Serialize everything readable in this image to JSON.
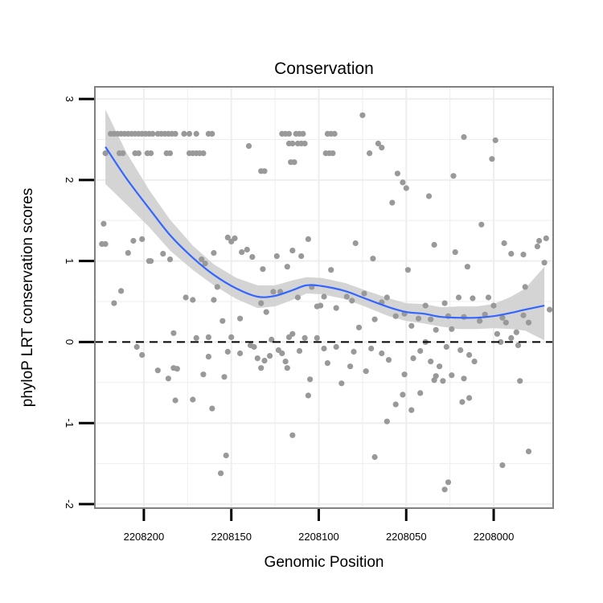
{
  "chart_data": {
    "type": "scatter",
    "title": "Conservation",
    "xlabel": "Genomic Position",
    "ylabel": "phyloP LRT conservation scores",
    "x_reversed": true,
    "xlim": [
      2208228,
      2207966
    ],
    "ylim": [
      -2.05,
      3.15
    ],
    "x_ticks": [
      2208200,
      2208150,
      2208100,
      2208050,
      2208000
    ],
    "x_tick_labels": [
      "2208200",
      "2208150",
      "2208100",
      "2208050",
      "2208000"
    ],
    "y_ticks": [
      -2,
      -1,
      0,
      1,
      2,
      3
    ],
    "y_tick_labels": [
      "-2",
      "-1",
      "0",
      "1",
      "2",
      "3"
    ],
    "grid": true,
    "reference_line": {
      "y": 0,
      "style": "dashed",
      "color": "#000000"
    },
    "colors": {
      "points": "#999999",
      "smooth": "#3366ff",
      "ribbon": "#cccccc",
      "panel_border": "#808080",
      "grid": "#eeeeee"
    },
    "points": [
      [
        2208219,
        2.57
      ],
      [
        2208217,
        2.57
      ],
      [
        2208215,
        2.57
      ],
      [
        2208213,
        2.57
      ],
      [
        2208211,
        2.57
      ],
      [
        2208209,
        2.57
      ],
      [
        2208207,
        2.57
      ],
      [
        2208205,
        2.57
      ],
      [
        2208203,
        2.57
      ],
      [
        2208201,
        2.57
      ],
      [
        2208199,
        2.57
      ],
      [
        2208197,
        2.57
      ],
      [
        2208195,
        2.57
      ],
      [
        2208192,
        2.57
      ],
      [
        2208190,
        2.57
      ],
      [
        2208188,
        2.57
      ],
      [
        2208186,
        2.57
      ],
      [
        2208184,
        2.57
      ],
      [
        2208182,
        2.57
      ],
      [
        2208177,
        2.57
      ],
      [
        2208174,
        2.57
      ],
      [
        2208170,
        2.57
      ],
      [
        2208163,
        2.57
      ],
      [
        2208161,
        2.57
      ],
      [
        2208222,
        2.33
      ],
      [
        2208214,
        2.33
      ],
      [
        2208212,
        2.33
      ],
      [
        2208205,
        2.33
      ],
      [
        2208203,
        2.33
      ],
      [
        2208198,
        2.33
      ],
      [
        2208196,
        2.33
      ],
      [
        2208187,
        2.33
      ],
      [
        2208185,
        2.33
      ],
      [
        2208174,
        2.33
      ],
      [
        2208172,
        2.33
      ],
      [
        2208170,
        2.33
      ],
      [
        2208168,
        2.33
      ],
      [
        2208166,
        2.33
      ],
      [
        2208121,
        2.57
      ],
      [
        2208119,
        2.57
      ],
      [
        2208117,
        2.57
      ],
      [
        2208113,
        2.57
      ],
      [
        2208111,
        2.57
      ],
      [
        2208109,
        2.57
      ],
      [
        2208095,
        2.57
      ],
      [
        2208093,
        2.57
      ],
      [
        2208091,
        2.57
      ],
      [
        2208117,
        2.45
      ],
      [
        2208115,
        2.45
      ],
      [
        2208112,
        2.45
      ],
      [
        2208110,
        2.45
      ],
      [
        2208108,
        2.45
      ],
      [
        2208096,
        2.33
      ],
      [
        2208094,
        2.33
      ],
      [
        2208092,
        2.33
      ],
      [
        2208071,
        2.33
      ],
      [
        2208133,
        2.11
      ],
      [
        2208131,
        2.11
      ],
      [
        2208116,
        2.22
      ],
      [
        2208114,
        2.22
      ],
      [
        2208140,
        2.42
      ],
      [
        2208075,
        2.8
      ],
      [
        2208066,
        2.45
      ],
      [
        2208064,
        2.4
      ],
      [
        2208055,
        2.08
      ],
      [
        2208052,
        1.97
      ],
      [
        2208058,
        1.72
      ],
      [
        2208050,
        1.9
      ],
      [
        2208037,
        1.8
      ],
      [
        2208023,
        2.05
      ],
      [
        2208017,
        2.53
      ],
      [
        2207999,
        2.49
      ],
      [
        2208001,
        2.26
      ],
      [
        2207975,
        1.18
      ],
      [
        2207983,
        1.08
      ],
      [
        2207974,
        1.25
      ],
      [
        2207970,
        1.28
      ],
      [
        2208223,
        1.46
      ],
      [
        2208224,
        1.21
      ],
      [
        2208222,
        1.21
      ],
      [
        2208209,
        1.1
      ],
      [
        2208206,
        1.25
      ],
      [
        2208201,
        1.27
      ],
      [
        2208197,
        1.0
      ],
      [
        2208196,
        1.0
      ],
      [
        2208189,
        1.09
      ],
      [
        2208185,
        1.02
      ],
      [
        2208167,
        1.02
      ],
      [
        2208165,
        0.97
      ],
      [
        2208160,
        1.1
      ],
      [
        2208152,
        1.29
      ],
      [
        2208150,
        1.24
      ],
      [
        2208148,
        1.28
      ],
      [
        2208144,
        1.11
      ],
      [
        2208141,
        1.14
      ],
      [
        2208138,
        1.05
      ],
      [
        2208132,
        0.9
      ],
      [
        2208124,
        1.06
      ],
      [
        2208118,
        0.93
      ],
      [
        2208115,
        1.13
      ],
      [
        2208110,
        1.06
      ],
      [
        2208106,
        1.27
      ],
      [
        2208093,
        0.89
      ],
      [
        2208079,
        1.22
      ],
      [
        2208074,
        0.6
      ],
      [
        2208069,
        1.03
      ],
      [
        2208049,
        0.89
      ],
      [
        2208034,
        1.2
      ],
      [
        2208022,
        1.11
      ],
      [
        2208015,
        0.93
      ],
      [
        2208007,
        1.45
      ],
      [
        2208003,
        0.55
      ],
      [
        2207994,
        1.22
      ],
      [
        2207990,
        1.09
      ],
      [
        2207982,
        0.68
      ],
      [
        2207971,
        0.98
      ],
      [
        2207968,
        0.4
      ],
      [
        2208176,
        0.55
      ],
      [
        2208172,
        0.52
      ],
      [
        2208163,
        0.06
      ],
      [
        2208160,
        0.52
      ],
      [
        2208158,
        0.68
      ],
      [
        2208155,
        0.26
      ],
      [
        2208145,
        0.29
      ],
      [
        2208133,
        0.48
      ],
      [
        2208130,
        0.37
      ],
      [
        2208126,
        0.62
      ],
      [
        2208122,
        0.62
      ],
      [
        2208117,
        0.06
      ],
      [
        2208112,
        0.55
      ],
      [
        2208104,
        0.68
      ],
      [
        2208101,
        0.44
      ],
      [
        2208099,
        0.45
      ],
      [
        2208097,
        0.56
      ],
      [
        2208090,
        0.42
      ],
      [
        2208084,
        0.56
      ],
      [
        2208081,
        0.51
      ],
      [
        2208077,
        0.18
      ],
      [
        2208068,
        0.28
      ],
      [
        2208064,
        0.49
      ],
      [
        2208061,
        0.55
      ],
      [
        2208056,
        0.32
      ],
      [
        2208051,
        0.35
      ],
      [
        2208047,
        0.2
      ],
      [
        2208043,
        0.29
      ],
      [
        2208039,
        0.45
      ],
      [
        2208036,
        0.28
      ],
      [
        2208033,
        0.15
      ],
      [
        2208028,
        0.48
      ],
      [
        2208026,
        0.32
      ],
      [
        2208024,
        0.16
      ],
      [
        2208020,
        0.55
      ],
      [
        2208017,
        0.31
      ],
      [
        2208012,
        0.54
      ],
      [
        2208008,
        0.26
      ],
      [
        2208005,
        0.34
      ],
      [
        2208000,
        0.45
      ],
      [
        2207995,
        0.3
      ],
      [
        2207993,
        0.24
      ],
      [
        2207987,
        0.12
      ],
      [
        2207983,
        0.33
      ],
      [
        2207980,
        0.24
      ],
      [
        2208217,
        0.48
      ],
      [
        2208213,
        0.63
      ],
      [
        2208204,
        -0.06
      ],
      [
        2208201,
        -0.16
      ],
      [
        2208183,
        0.11
      ],
      [
        2208170,
        0.05
      ],
      [
        2208150,
        0.06
      ],
      [
        2208145,
        -0.14
      ],
      [
        2208137,
        -0.06
      ],
      [
        2208135,
        -0.2
      ],
      [
        2208133,
        -0.32
      ],
      [
        2208127,
        0.03
      ],
      [
        2208123,
        -0.1
      ],
      [
        2208121,
        -0.14
      ],
      [
        2208119,
        -0.24
      ],
      [
        2208115,
        0.1
      ],
      [
        2208111,
        -0.11
      ],
      [
        2208108,
        0.05
      ],
      [
        2208101,
        0.05
      ],
      [
        2208097,
        -0.08
      ],
      [
        2208090,
        -0.06
      ],
      [
        2208080,
        -0.12
      ],
      [
        2208070,
        -0.08
      ],
      [
        2208064,
        -0.14
      ],
      [
        2208060,
        -0.22
      ],
      [
        2208051,
        -0.4
      ],
      [
        2208046,
        -0.2
      ],
      [
        2208042,
        -0.11
      ],
      [
        2208039,
        0.0
      ],
      [
        2208036,
        -0.24
      ],
      [
        2208031,
        -0.3
      ],
      [
        2208027,
        -0.06
      ],
      [
        2208024,
        -0.41
      ],
      [
        2208019,
        -0.1
      ],
      [
        2208014,
        -0.16
      ],
      [
        2208011,
        -0.24
      ],
      [
        2207998,
        0.1
      ],
      [
        2207996,
        0.0
      ],
      [
        2207990,
        0.05
      ],
      [
        2207986,
        -0.04
      ],
      [
        2208192,
        -0.35
      ],
      [
        2208181,
        -0.33
      ],
      [
        2208183,
        -0.32
      ],
      [
        2208186,
        -0.45
      ],
      [
        2208166,
        -0.4
      ],
      [
        2208163,
        -0.18
      ],
      [
        2208154,
        -0.43
      ],
      [
        2208152,
        -0.12
      ],
      [
        2208139,
        -0.04
      ],
      [
        2208131,
        -0.23
      ],
      [
        2208128,
        -0.17
      ],
      [
        2208118,
        -0.32
      ],
      [
        2208105,
        -0.46
      ],
      [
        2208095,
        -0.26
      ],
      [
        2208087,
        -0.51
      ],
      [
        2208082,
        -0.3
      ],
      [
        2208073,
        -0.36
      ],
      [
        2208061,
        -0.98
      ],
      [
        2208056,
        -0.77
      ],
      [
        2208052,
        -0.65
      ],
      [
        2208047,
        -0.84
      ],
      [
        2208042,
        -0.63
      ],
      [
        2208034,
        -0.47
      ],
      [
        2208029,
        -0.48
      ],
      [
        2208017,
        -0.45
      ],
      [
        2207985,
        -0.48
      ],
      [
        2208182,
        -0.72
      ],
      [
        2208172,
        -0.71
      ],
      [
        2208161,
        -0.82
      ],
      [
        2208115,
        -1.15
      ],
      [
        2208106,
        -0.66
      ],
      [
        2208068,
        -1.42
      ],
      [
        2208014,
        -0.69
      ],
      [
        2208018,
        -0.74
      ],
      [
        2207995,
        -1.52
      ],
      [
        2207980,
        -1.35
      ],
      [
        2208153,
        -1.4
      ],
      [
        2208156,
        -1.62
      ],
      [
        2208028,
        -1.82
      ],
      [
        2208026,
        -1.73
      ],
      [
        2208033,
        -0.42
      ]
    ],
    "smooth_fit": {
      "x": [
        2208222,
        2208210,
        2208197,
        2208185,
        2208172,
        2208160,
        2208147,
        2208135,
        2208125,
        2208115,
        2208107,
        2208098,
        2208085,
        2208075,
        2208060,
        2208050,
        2208040,
        2208030,
        2208020,
        2208010,
        2208000,
        2207990,
        2207982,
        2207971
      ],
      "y": [
        2.41,
        2.02,
        1.65,
        1.32,
        1.04,
        0.83,
        0.66,
        0.56,
        0.57,
        0.64,
        0.7,
        0.69,
        0.63,
        0.55,
        0.43,
        0.37,
        0.35,
        0.31,
        0.3,
        0.3,
        0.32,
        0.36,
        0.4,
        0.45
      ],
      "lower": [
        1.95,
        1.7,
        1.42,
        1.13,
        0.89,
        0.7,
        0.53,
        0.42,
        0.44,
        0.52,
        0.6,
        0.59,
        0.53,
        0.45,
        0.32,
        0.26,
        0.23,
        0.19,
        0.16,
        0.16,
        0.17,
        0.16,
        0.14,
        0.02
      ],
      "upper": [
        2.87,
        2.34,
        1.88,
        1.51,
        1.19,
        0.96,
        0.79,
        0.7,
        0.7,
        0.76,
        0.8,
        0.79,
        0.73,
        0.65,
        0.54,
        0.48,
        0.47,
        0.43,
        0.44,
        0.44,
        0.47,
        0.56,
        0.66,
        0.93
      ]
    }
  }
}
